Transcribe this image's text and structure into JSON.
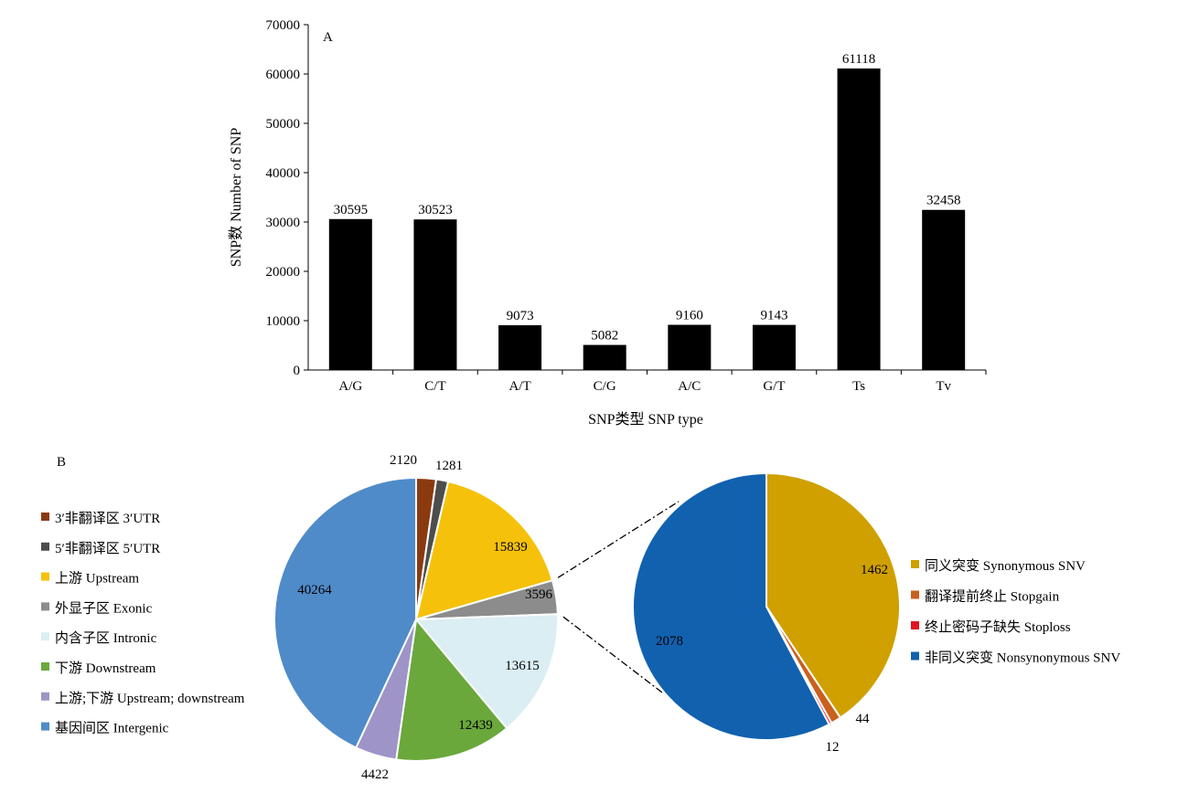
{
  "chart_data": [
    {
      "type": "bar",
      "panel_label": "A",
      "categories": [
        "A/G",
        "C/T",
        "A/T",
        "C/G",
        "A/C",
        "G/T",
        "Ts",
        "Tv"
      ],
      "values": [
        30595,
        30523,
        9073,
        5082,
        9160,
        9143,
        61118,
        32458
      ],
      "value_labels": [
        "30595",
        "30523",
        "9073",
        "5082",
        "9160",
        "9143",
        "61118",
        "32458"
      ],
      "xlabel": "SNP类型 SNP type",
      "ylabel": "SNP数 Number of SNP",
      "ylim": [
        0,
        70000
      ],
      "yticks": [
        0,
        10000,
        20000,
        30000,
        40000,
        50000,
        60000,
        70000
      ],
      "ytick_labels": [
        "0",
        "10000",
        "20000",
        "30000",
        "40000",
        "50000",
        "60000",
        "70000"
      ],
      "bar_color": "#000000",
      "grid": false
    },
    {
      "type": "pie",
      "panel_label": "B",
      "legend_position": "left",
      "slices": [
        {
          "label": "3′非翻译区 3′UTR",
          "value": 2120,
          "value_label": "2120",
          "color": "#8B3A0F"
        },
        {
          "label": "5′非翻译区 5′UTR",
          "value": 1281,
          "value_label": "1281",
          "color": "#4D4D4D"
        },
        {
          "label": "上游 Upstream",
          "value": 15839,
          "value_label": "15839",
          "color": "#F5C10A"
        },
        {
          "label": "外显子区 Exonic",
          "value": 3596,
          "value_label": "3596",
          "color": "#8C8C8C"
        },
        {
          "label": "内含子区 Intronic",
          "value": 13615,
          "value_label": "13615",
          "color": "#DAEEF3"
        },
        {
          "label": "下游 Downstream",
          "value": 12439,
          "value_label": "12439",
          "color": "#6AA83B"
        },
        {
          "label": "上游;下游 Upstream; downstream",
          "value": 4422,
          "value_label": "4422",
          "color": "#9E94C8"
        },
        {
          "label": "基因间区 Intergenic",
          "value": 40264,
          "value_label": "40264",
          "color": "#4F8BC9"
        }
      ]
    },
    {
      "type": "pie",
      "legend_position": "right",
      "slices": [
        {
          "label": "同义突变 Synonymous SNV",
          "value": 1462,
          "value_label": "1462",
          "color": "#CFA000"
        },
        {
          "label": "翻译提前终止 Stopgain",
          "value": 44,
          "value_label": "44",
          "color": "#C9601E"
        },
        {
          "label": "终止密码子缺失 Stoploss",
          "value": 12,
          "value_label": "12",
          "color": "#E0141E"
        },
        {
          "label": "非同义突变 Nonsynonymous SNV",
          "value": 2078,
          "value_label": "2078",
          "color": "#1161AF"
        }
      ]
    }
  ]
}
